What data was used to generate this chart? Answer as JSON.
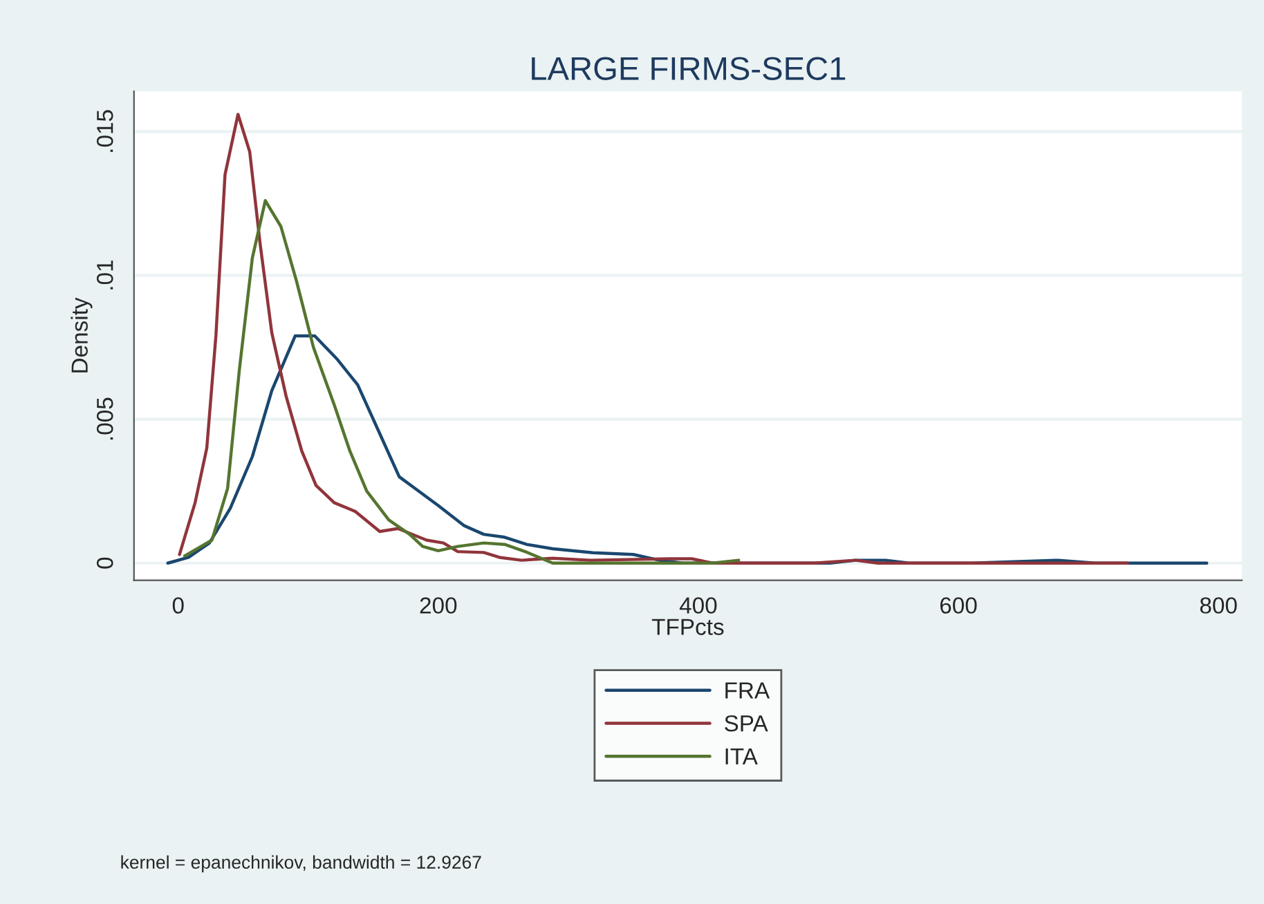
{
  "chart_data": {
    "type": "line",
    "title": "LARGE FIRMS-SEC1",
    "xlabel": "TFPcts",
    "ylabel": "Density",
    "xlim": [
      -34,
      818
    ],
    "xticks": [
      0,
      200,
      400,
      600,
      800
    ],
    "ylim": [
      -0.0006,
      0.0164
    ],
    "yticks": [
      {
        "value": 0,
        "label": "0"
      },
      {
        "value": 0.005,
        "label": ".005"
      },
      {
        "value": 0.01,
        "label": ".01"
      },
      {
        "value": 0.015,
        "label": ".015"
      }
    ],
    "grid": "y",
    "legend": "bottom",
    "series": [
      {
        "name": "FRA",
        "color": "#1a476f",
        "x": [
          -8,
          8,
          24,
          40,
          57,
          72,
          90,
          105,
          122,
          138,
          154,
          170,
          182,
          200,
          220,
          235,
          251,
          268,
          288,
          319,
          350,
          370,
          388,
          450,
          501,
          521,
          544,
          562,
          611,
          677,
          705,
          755,
          791
        ],
        "values": [
          0,
          0.0002,
          0.0007,
          0.0019,
          0.0037,
          0.006,
          0.0079,
          0.0079,
          0.0071,
          0.0062,
          0.0046,
          0.003,
          0.0026,
          0.002,
          0.0013,
          0.001,
          0.0009,
          0.00065,
          0.0005,
          0.00036,
          0.0003,
          0.0001,
          0,
          0,
          0,
          0.0001,
          0.0001,
          0,
          0,
          0.0001,
          0,
          0,
          0
        ]
      },
      {
        "name": "SPA",
        "color": "#90353b",
        "x": [
          1,
          13,
          22,
          29,
          36,
          46,
          55,
          63,
          72,
          83,
          95,
          106,
          120,
          136,
          155,
          169,
          191,
          204,
          215,
          235,
          247,
          264,
          288,
          317,
          378,
          395,
          411,
          489,
          521,
          538,
          673,
          730
        ],
        "values": [
          0.0003,
          0.0021,
          0.004,
          0.0079,
          0.0135,
          0.0156,
          0.0143,
          0.0111,
          0.008,
          0.0058,
          0.0039,
          0.0027,
          0.0021,
          0.0018,
          0.0011,
          0.0012,
          0.0008,
          0.0007,
          0.0004,
          0.00037,
          0.0002,
          0.0001,
          0.00017,
          0.0001,
          0.00015,
          0.00015,
          0,
          0,
          0.0001,
          0,
          0,
          0
        ]
      },
      {
        "name": "ITA",
        "color": "#55752f",
        "x": [
          5,
          26,
          38,
          47,
          57,
          67,
          79,
          91,
          104,
          120,
          132,
          145,
          162,
          178,
          188,
          200,
          215,
          235,
          251,
          268,
          288,
          317,
          376,
          411,
          431
        ],
        "values": [
          0.00025,
          0.0008,
          0.0026,
          0.0067,
          0.0106,
          0.0126,
          0.0117,
          0.0098,
          0.0075,
          0.0055,
          0.0039,
          0.0025,
          0.0015,
          0.001,
          0.00058,
          0.00043,
          0.00058,
          0.0007,
          0.00065,
          0.00038,
          0,
          0,
          0,
          0,
          0.0001
        ]
      }
    ],
    "annotations": [
      "kernel = epanechnikov, bandwidth = 12.9267"
    ]
  }
}
